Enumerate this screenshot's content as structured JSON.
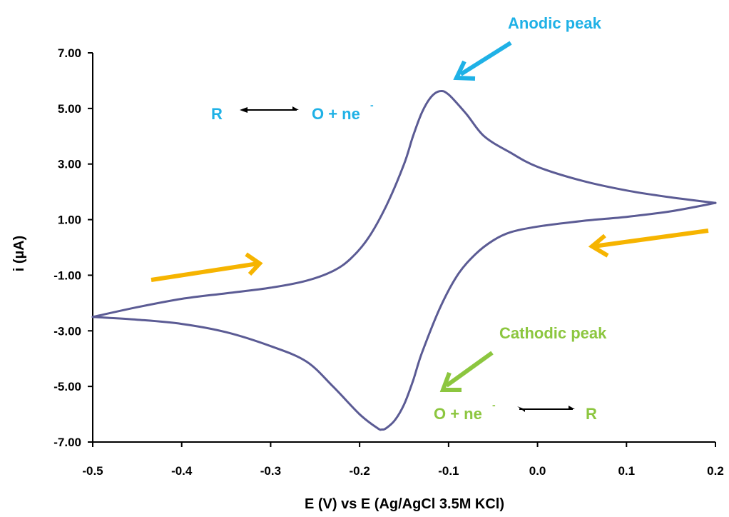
{
  "chart_data": {
    "type": "line",
    "xlabel": "E (V) vs E (Ag/AgCl 3.5M KCl)",
    "ylabel": "i (µA)",
    "xlim": [
      -0.5,
      0.2
    ],
    "ylim": [
      -7.0,
      7.0
    ],
    "x_ticks": [
      "-0.5",
      "-0.4",
      "-0.3",
      "-0.2",
      "-0.1",
      "0.0",
      "0.1",
      "0.2"
    ],
    "y_ticks": [
      "7.00",
      "5.00",
      "3.00",
      "1.00",
      "-1.00",
      "-3.00",
      "-5.00",
      "-7.00"
    ],
    "grid": false,
    "legend": "none",
    "series": [
      {
        "color": "#5b5b94",
        "segment": "forward",
        "x": [
          -0.5,
          -0.45,
          -0.4,
          -0.35,
          -0.3,
          -0.26,
          -0.23,
          -0.21,
          -0.19,
          -0.17,
          -0.15,
          -0.14,
          -0.13,
          -0.12,
          -0.11,
          -0.1,
          -0.08,
          -0.06,
          -0.03,
          0.0,
          0.05,
          0.1,
          0.15,
          0.2
        ],
        "y": [
          -2.5,
          -2.15,
          -1.85,
          -1.65,
          -1.45,
          -1.2,
          -0.85,
          -0.4,
          0.35,
          1.5,
          3.0,
          4.0,
          4.85,
          5.4,
          5.62,
          5.5,
          4.8,
          4.0,
          3.4,
          2.9,
          2.4,
          2.05,
          1.8,
          1.6
        ]
      },
      {
        "color": "#5b5b94",
        "segment": "reverse",
        "x": [
          0.2,
          0.15,
          0.1,
          0.05,
          0.0,
          -0.03,
          -0.05,
          -0.07,
          -0.09,
          -0.11,
          -0.13,
          -0.14,
          -0.15,
          -0.16,
          -0.17,
          -0.175,
          -0.18,
          -0.2,
          -0.23,
          -0.26,
          -0.3,
          -0.35,
          -0.4,
          -0.45,
          -0.5
        ],
        "y": [
          1.6,
          1.3,
          1.1,
          0.95,
          0.75,
          0.55,
          0.25,
          -0.25,
          -1.0,
          -2.2,
          -3.8,
          -4.8,
          -5.65,
          -6.2,
          -6.5,
          -6.55,
          -6.5,
          -6.0,
          -5.0,
          -4.1,
          -3.55,
          -3.05,
          -2.75,
          -2.6,
          -2.5
        ]
      }
    ],
    "annotations": {
      "anodic_label": "Anodic peak",
      "cathodic_label": "Cathodic peak",
      "ox_eq_left": "R",
      "ox_eq_right": "O + ne",
      "ox_eq_sup": "-",
      "red_eq_left": "O + ne",
      "red_eq_sup": "-",
      "red_eq_right": "R"
    },
    "colors": {
      "curve": "#5b5b94",
      "anodic": "#1fb1e6",
      "cathodic": "#8cc63f",
      "scan_arrow": "#f6b400",
      "axis": "#000000"
    }
  }
}
